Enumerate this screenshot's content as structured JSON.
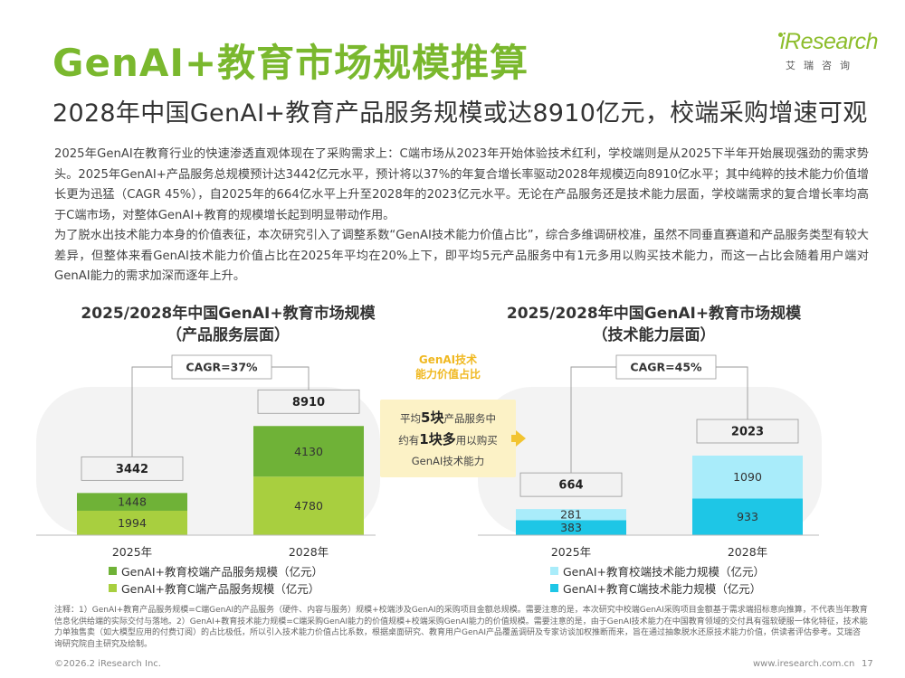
{
  "header": {
    "title": "GenAI+教育市场规模推算",
    "subtitle": "2028年中国GenAI+教育产品服务规模或达8910亿元，校端采购增速可观",
    "logo_text": "iResearch",
    "logo_sub": "艾瑞咨询"
  },
  "body": {
    "paragraph1": "2025年GenAI在教育行业的快速渗透直观体现在了采购需求上：C端市场从2023年开始体验技术红利，学校端则是从2025下半年开始展现强劲的需求势头。2025年GenAI+产品服务总规模预计达3442亿元水平，预计将以37%的年复合增长率驱动2028年规模迈向8910亿水平；其中纯粹的技术能力价值增长更为迅猛（CAGR 45%），自2025年的664亿水平上升至2028年的2023亿元水平。无论在产品服务还是技术能力层面，学校端需求的复合增长率均高于C端市场，对整体GenAI+教育的规模增长起到明显带动作用。",
    "paragraph2": "为了脱水出技术能力本身的价值表征，本次研究引入了调整系数“GenAI技术能力价值占比”，综合多维调研校准，虽然不同垂直赛道和产品服务类型有较大差异，但整体来看GenAI技术能力价值占比在2025年平均在20%上下，即平均5元产品服务中有1元多用以购买技术能力，而这一占比会随着用户端对GenAI能力的需求加深而逐年上升。"
  },
  "callout": {
    "title_line1": "GenAI技术",
    "title_line2": "能力价值占比",
    "line1_pre": "平均",
    "line1_bold": "5块",
    "line1_post": "产品服务中",
    "line2_pre": "约有",
    "line2_bold": "1块多",
    "line2_post": "用以购买",
    "line3": "GenAI技术能力"
  },
  "legends": {
    "left_school": "GenAI+教育校端产品服务规模（亿元）",
    "left_c": "GenAI+教育C端产品服务规模（亿元）",
    "right_school": "GenAI+教育校端技术能力规模（亿元）",
    "right_c": "GenAI+教育C端技术能力规模（亿元）"
  },
  "footer": {
    "footnote": "注释：1）GenAI+教育产品服务规模=C端GenAI的产品服务（硬件、内容与服务）规模+校端涉及GenAI的采购项目金额总规模。需要注意的是，本次研究中校端GenAI采购项目金额基于需求端招标意向推算，不代表当年教育信息化供给端的实际交付与落地。2）GenAI+教育技术能力规模=C端采购GenAI能力的价值规模+校端采购GenAI能力的价值规模。需要注意的是，由于GenAI技术能力在中国教育领域的交付具有强软硬服一体化特征，技术能力单独售卖（如大模型应用的付费订阅）的占比极低，所以引入技术能力价值占比系数，根据桌面研究、教育用户GenAI产品覆盖调研及专家访谈加权推断而来，旨在通过抽象脱水还原技术能力价值，供读者评估参考。艾瑞咨询研究院自主研究及绘制。",
    "copyright": "©2026.2 iResearch Inc.",
    "website": "www.iresearch.com.cn",
    "page": "17"
  },
  "colors": {
    "title_green": "#7ab82e",
    "green_dark": "#6fb237",
    "green_light": "#a8cf3f",
    "cyan_dark": "#1ec6e6",
    "cyan_light": "#a9ecfa",
    "gold": "#f0b820"
  },
  "chart_data": [
    {
      "type": "bar",
      "stacked": true,
      "title": "2025/2028年中国GenAI+教育市场规模",
      "title_line2": "（产品服务层面）",
      "categories": [
        "2025年",
        "2028年"
      ],
      "series": [
        {
          "name": "GenAI+教育C端产品服务规模（亿元）",
          "values": [
            1994,
            4780
          ]
        },
        {
          "name": "GenAI+教育校端产品服务规模（亿元）",
          "values": [
            1448,
            4130
          ]
        }
      ],
      "totals": [
        "3442",
        "8910"
      ],
      "cagr_label": "CAGR=37%"
    },
    {
      "type": "bar",
      "stacked": true,
      "title": "2025/2028年中国GenAI+教育市场规模",
      "title_line2": "（技术能力层面）",
      "categories": [
        "2025年",
        "2028年"
      ],
      "series": [
        {
          "name": "GenAI+教育C端技术能力规模（亿元）",
          "values": [
            383,
            933
          ]
        },
        {
          "name": "GenAI+教育校端技术能力规模（亿元）",
          "values": [
            281,
            1090
          ]
        }
      ],
      "totals": [
        "664",
        "2023"
      ],
      "cagr_label": "CAGR=45%"
    }
  ]
}
